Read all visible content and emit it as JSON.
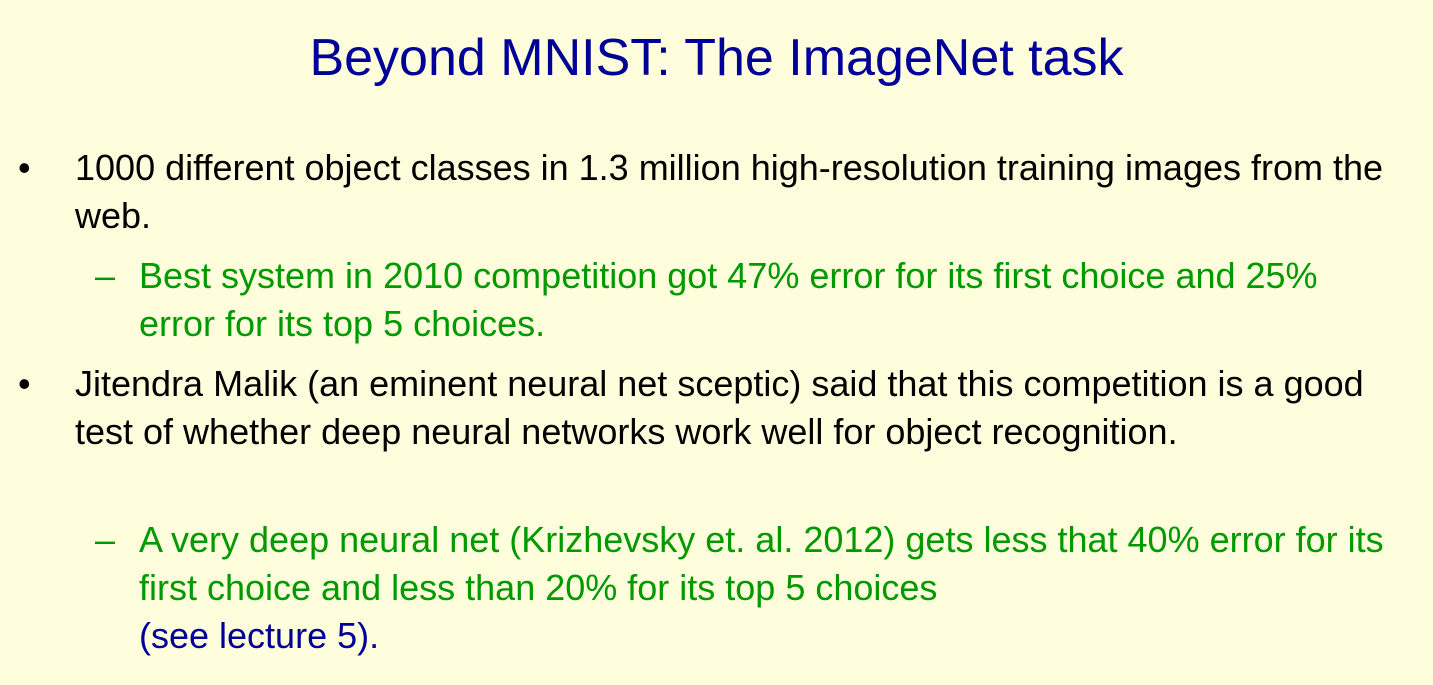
{
  "slide": {
    "title": "Beyond MNIST: The ImageNet task",
    "bullets": [
      {
        "marker": "•",
        "text": "1000 different object classes in 1.3 million high-resolution training images from the web."
      },
      {
        "marker": "•",
        "text": "Jitendra Malik (an eminent neural net sceptic) said that this competition is a good test of whether deep neural networks work well for object recognition."
      }
    ],
    "subbullets": [
      {
        "marker": "–",
        "text": "Best system in 2010 competition got 47% error for its first choice and 25% error for its top 5 choices."
      },
      {
        "marker": "–",
        "text": "A very deep neural net (Krizhevsky et. al. 2012) gets less that 40% error for its first choice and less than 20% for its top 5 choices",
        "reference": "(see lecture 5)."
      }
    ]
  },
  "colors": {
    "background": "#FEFEDC",
    "title": "#000099",
    "bullet_text": "#000000",
    "sub_bullet_text": "#009900",
    "reference_text": "#000099"
  }
}
